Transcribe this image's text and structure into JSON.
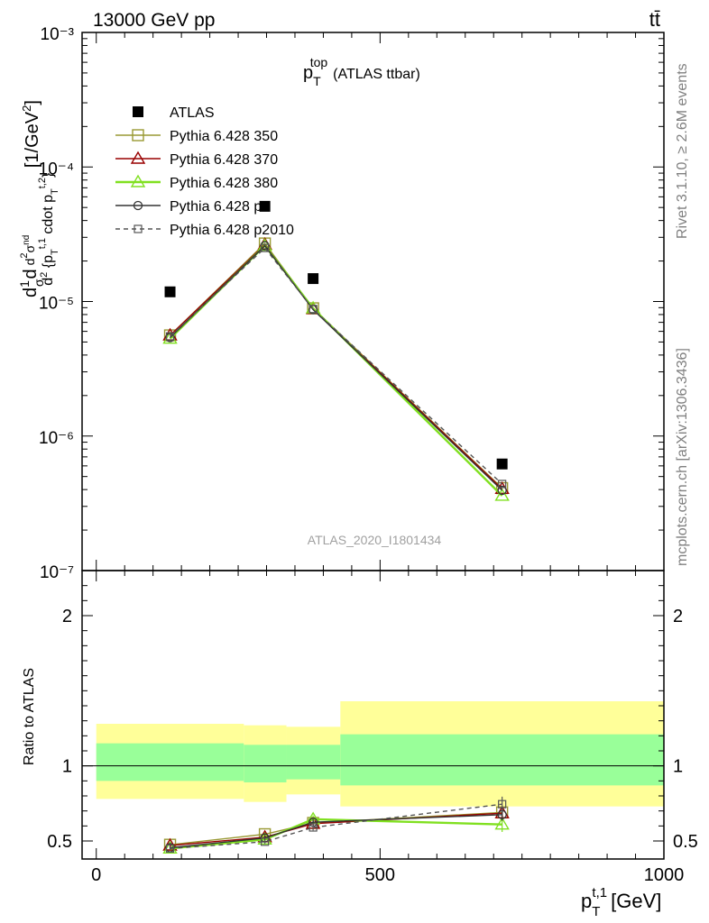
{
  "header": {
    "energy_label": "13000 GeV pp",
    "process_label": "tt̄"
  },
  "right_margin": {
    "rivet_label": "Rivet 3.1.10, ≥ 2.6M events",
    "mcplots_label": "mcplots.cern.ch [arXiv:1306.3436]"
  },
  "plot_title": {
    "main": "p",
    "sub": "T",
    "sup": "top",
    "rest": "(ATLAS ttbar)"
  },
  "analysis_label": "ATLAS_2020_I1801434",
  "colors": {
    "atlas": "#000000",
    "p350": "#999933",
    "p370": "#990000",
    "p380": "#80e020",
    "p0": "#333333",
    "p2010": "#555555",
    "band_outer": "#ffff99",
    "band_inner": "#99ff99"
  },
  "chart_data": [
    {
      "type": "scatter",
      "panel": "main",
      "y_scale": "log",
      "xlim": [
        -25,
        1000
      ],
      "ylim": [
        1e-07,
        0.001
      ],
      "ylabel": "d(1/σ) d²σ^nd / d²{p_T^{t,1} cdot p_T^{t,2}} [1/GeV²]",
      "ytick_labels": [
        "10⁻⁷",
        "10⁻⁶",
        "10⁻⁵",
        "10⁻⁴",
        "10⁻³"
      ],
      "legend_position": "top-left",
      "x": [
        130,
        297,
        382,
        715
      ],
      "series": [
        {
          "name": "ATLAS",
          "marker": "filled-square",
          "line": "none",
          "values": [
            1.18e-05,
            5.1e-05,
            1.48e-05,
            6.2e-07
          ]
        },
        {
          "name": "Pythia 6.428 350",
          "marker": "open-square",
          "line": "solid",
          "values": [
            5.6e-06,
            2.7e-05,
            8.9e-06,
            4.1e-07
          ]
        },
        {
          "name": "Pythia 6.428 370",
          "marker": "open-triangle",
          "line": "solid",
          "values": [
            5.6e-06,
            2.65e-05,
            8.8e-06,
            4.05e-07
          ]
        },
        {
          "name": "Pythia 6.428 380",
          "marker": "open-triangle",
          "line": "solid-thick",
          "values": [
            5.3e-06,
            2.6e-05,
            8.9e-06,
            3.6e-07
          ]
        },
        {
          "name": "Pythia 6.428 p0",
          "marker": "open-circle",
          "line": "solid",
          "values": [
            5.4e-06,
            2.6e-05,
            8.7e-06,
            3.95e-07
          ]
        },
        {
          "name": "Pythia 6.428 p2010",
          "marker": "open-square-small",
          "line": "dashed",
          "values": [
            5.5e-06,
            2.5e-05,
            8.8e-06,
            4.4e-07
          ]
        }
      ]
    },
    {
      "type": "line",
      "panel": "ratio",
      "xlim": [
        -25,
        1000
      ],
      "ylim": [
        0.38,
        2.3
      ],
      "xlabel": "p_T^{t,1} [GeV]",
      "ylabel": "Ratio to ATLAS",
      "xtick_labels": [
        "0",
        "500",
        "1000"
      ],
      "ytick_labels": [
        "0.5",
        "1",
        "2"
      ],
      "reference_line": 1,
      "bands": [
        {
          "x0": 0,
          "x1": 260,
          "outer": [
            0.78,
            1.28
          ],
          "inner": [
            0.9,
            1.15
          ]
        },
        {
          "x0": 260,
          "x1": 335,
          "outer": [
            0.76,
            1.27
          ],
          "inner": [
            0.89,
            1.14
          ]
        },
        {
          "x0": 335,
          "x1": 430,
          "outer": [
            0.81,
            1.26
          ],
          "inner": [
            0.91,
            1.14
          ]
        },
        {
          "x0": 430,
          "x1": 1000,
          "outer": [
            0.73,
            1.43
          ],
          "inner": [
            0.87,
            1.21
          ]
        }
      ],
      "x": [
        130,
        297,
        382,
        715
      ],
      "series": [
        {
          "name": "Pythia 6.428 350",
          "values": [
            0.475,
            0.545,
            0.62,
            0.69
          ],
          "errors": [
            0.01,
            0.015,
            0.02,
            0.04
          ]
        },
        {
          "name": "Pythia 6.428 370",
          "values": [
            0.47,
            0.525,
            0.615,
            0.685
          ],
          "errors": [
            0.01,
            0.015,
            0.02,
            0.04
          ]
        },
        {
          "name": "Pythia 6.428 380",
          "values": [
            0.45,
            0.51,
            0.645,
            0.61
          ],
          "errors": [
            0.01,
            0.015,
            0.025,
            0.05
          ]
        },
        {
          "name": "Pythia 6.428 p0",
          "values": [
            0.455,
            0.52,
            0.625,
            0.675
          ],
          "errors": [
            0.01,
            0.015,
            0.02,
            0.04
          ]
        },
        {
          "name": "Pythia 6.428 p2010",
          "values": [
            0.45,
            0.495,
            0.59,
            0.745
          ],
          "errors": [
            0.01,
            0.015,
            0.02,
            0.05
          ]
        }
      ]
    }
  ]
}
